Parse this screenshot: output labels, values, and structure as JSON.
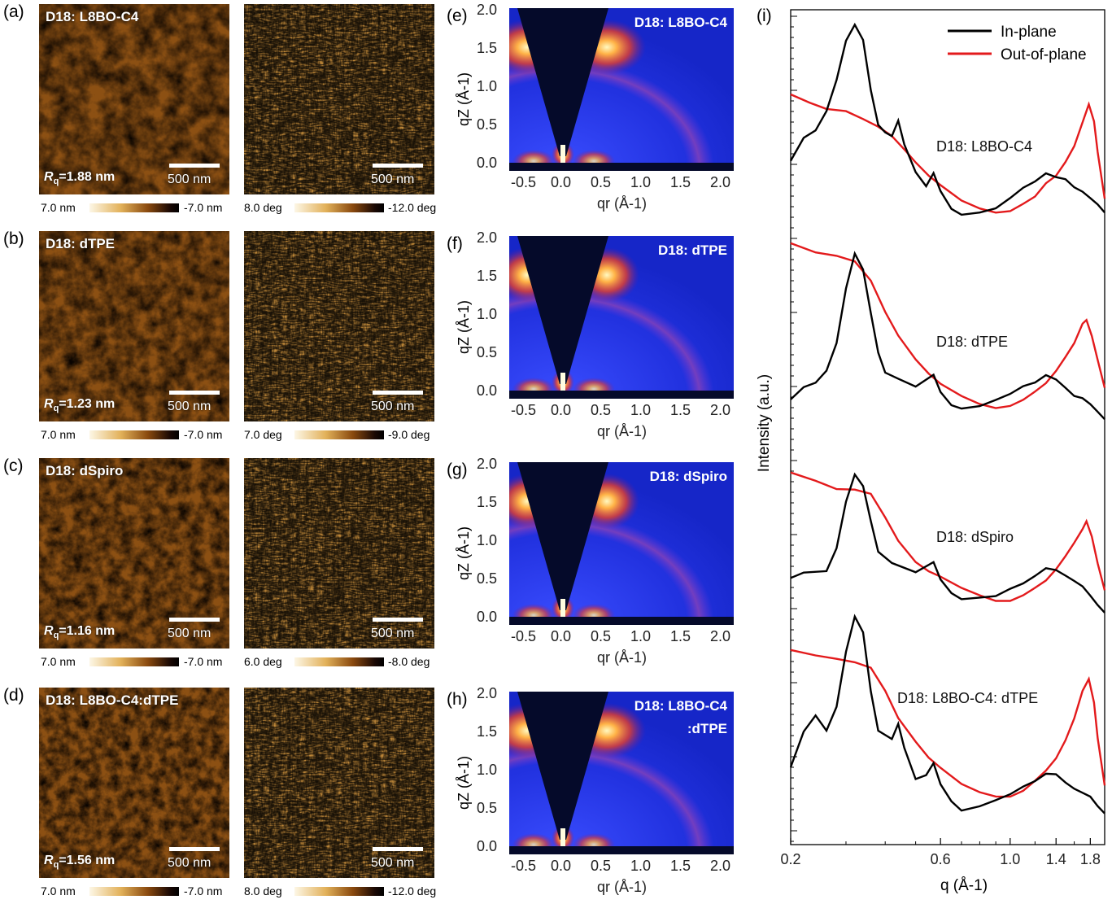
{
  "panels": {
    "a": {
      "letter": "(a)",
      "title": "D18: L8BO-C4",
      "rq_sym": "R",
      "rq_sub": "q",
      "rq_val": "=1.88 nm",
      "scale": "500 nm",
      "scale2": "500 nm",
      "cb1_lo": "7.0 nm",
      "cb1_hi": "-7.0 nm",
      "cb2_lo": "8.0 deg",
      "cb2_hi": "-12.0 deg"
    },
    "b": {
      "letter": "(b)",
      "title": "D18: dTPE",
      "rq_sym": "R",
      "rq_sub": "q",
      "rq_val": "=1.23 nm",
      "scale": "500 nm",
      "scale2": "500 nm",
      "cb1_lo": "7.0 nm",
      "cb1_hi": "-7.0 nm",
      "cb2_lo": "7.0 deg",
      "cb2_hi": "-9.0 deg"
    },
    "c": {
      "letter": "(c)",
      "title": "D18: dSpiro",
      "rq_sym": "R",
      "rq_sub": "q",
      "rq_val": "=1.16 nm",
      "scale": "500 nm",
      "scale2": "500 nm",
      "cb1_lo": "7.0 nm",
      "cb1_hi": "-7.0 nm",
      "cb2_lo": "6.0 deg",
      "cb2_hi": "-8.0 deg"
    },
    "d": {
      "letter": "(d)",
      "title": "D18: L8BO-C4:dTPE",
      "rq_sym": "R",
      "rq_sub": "q",
      "rq_val": "=1.56 nm",
      "scale": "500 nm",
      "scale2": "500 nm",
      "cb1_lo": "7.0 nm",
      "cb1_hi": "-7.0 nm",
      "cb2_lo": "8.0 deg",
      "cb2_hi": "-12.0 deg"
    }
  },
  "giwaxs": {
    "e": {
      "letter": "(e)",
      "title": "D18: L8BO-C4",
      "title2": ""
    },
    "f": {
      "letter": "(f)",
      "title": "D18: dTPE",
      "title2": ""
    },
    "g": {
      "letter": "(g)",
      "title": "D18: dSpiro",
      "title2": ""
    },
    "h": {
      "letter": "(h)",
      "title": "D18: L8BO-C4",
      "title2": ":dTPE"
    },
    "yticks": [
      "2.0",
      "1.5",
      "1.0",
      "0.5",
      "0.0"
    ],
    "xticks": [
      "-0.5",
      "0.0",
      "0.5",
      "1.0",
      "1.5",
      "2.0"
    ],
    "ylabel": "qZ (Å-1)",
    "xlabel": "qr (Å-1)"
  },
  "chart_data": {
    "type": "line",
    "panel_letter": "(i)",
    "xlabel": "q (Å-1)",
    "ylabel": "Intensity (a.u.)",
    "xscale": "log",
    "xlim": [
      0.2,
      2.0
    ],
    "xticks": [
      "0.2",
      "0.6",
      "1.0",
      "1.4",
      "1.8"
    ],
    "legend": [
      {
        "name": "In-plane",
        "color": "#000000"
      },
      {
        "name": "Out-of-plane",
        "color": "#e31a1c"
      }
    ],
    "groups": [
      {
        "label": "D18: L8BO-C4",
        "in_plane": [
          [
            0.2,
            1.3
          ],
          [
            0.22,
            1.9
          ],
          [
            0.24,
            2.1
          ],
          [
            0.26,
            2.6
          ],
          [
            0.28,
            3.4
          ],
          [
            0.3,
            4.4
          ],
          [
            0.32,
            4.8
          ],
          [
            0.34,
            4.4
          ],
          [
            0.36,
            3.1
          ],
          [
            0.38,
            2.2
          ],
          [
            0.4,
            2.0
          ],
          [
            0.42,
            1.9
          ],
          [
            0.44,
            2.3
          ],
          [
            0.46,
            1.7
          ],
          [
            0.5,
            1.0
          ],
          [
            0.54,
            0.65
          ],
          [
            0.57,
            1.0
          ],
          [
            0.6,
            0.55
          ],
          [
            0.65,
            0.1
          ],
          [
            0.7,
            -0.05
          ],
          [
            0.8,
            0.0
          ],
          [
            0.9,
            0.1
          ],
          [
            1.0,
            0.35
          ],
          [
            1.1,
            0.6
          ],
          [
            1.2,
            0.75
          ],
          [
            1.3,
            0.95
          ],
          [
            1.4,
            0.85
          ],
          [
            1.5,
            0.8
          ],
          [
            1.6,
            0.6
          ],
          [
            1.7,
            0.5
          ],
          [
            1.8,
            0.35
          ],
          [
            1.9,
            0.2
          ],
          [
            2.0,
            0.0
          ]
        ],
        "out_of_plane": [
          [
            0.2,
            3.0
          ],
          [
            0.23,
            2.8
          ],
          [
            0.26,
            2.65
          ],
          [
            0.3,
            2.6
          ],
          [
            0.34,
            2.4
          ],
          [
            0.38,
            2.2
          ],
          [
            0.42,
            1.95
          ],
          [
            0.46,
            1.6
          ],
          [
            0.5,
            1.25
          ],
          [
            0.55,
            0.9
          ],
          [
            0.6,
            0.65
          ],
          [
            0.7,
            0.25
          ],
          [
            0.8,
            0.05
          ],
          [
            0.9,
            -0.05
          ],
          [
            1.0,
            0.0
          ],
          [
            1.1,
            0.2
          ],
          [
            1.2,
            0.4
          ],
          [
            1.3,
            0.75
          ],
          [
            1.4,
            0.95
          ],
          [
            1.5,
            1.3
          ],
          [
            1.6,
            1.7
          ],
          [
            1.7,
            2.3
          ],
          [
            1.78,
            2.75
          ],
          [
            1.85,
            2.3
          ],
          [
            1.9,
            1.5
          ],
          [
            2.0,
            0.3
          ]
        ]
      },
      {
        "label": "D18: dTPE",
        "in_plane": [
          [
            0.2,
            0.2
          ],
          [
            0.22,
            0.5
          ],
          [
            0.24,
            0.6
          ],
          [
            0.26,
            0.9
          ],
          [
            0.28,
            1.6
          ],
          [
            0.3,
            3.0
          ],
          [
            0.32,
            3.9
          ],
          [
            0.34,
            3.5
          ],
          [
            0.36,
            2.4
          ],
          [
            0.38,
            1.4
          ],
          [
            0.4,
            0.9
          ],
          [
            0.44,
            0.75
          ],
          [
            0.5,
            0.55
          ],
          [
            0.57,
            0.85
          ],
          [
            0.6,
            0.4
          ],
          [
            0.65,
            0.05
          ],
          [
            0.7,
            -0.05
          ],
          [
            0.8,
            0.0
          ],
          [
            0.9,
            0.15
          ],
          [
            1.0,
            0.3
          ],
          [
            1.1,
            0.5
          ],
          [
            1.2,
            0.6
          ],
          [
            1.3,
            0.8
          ],
          [
            1.4,
            0.7
          ],
          [
            1.5,
            0.5
          ],
          [
            1.6,
            0.3
          ],
          [
            1.7,
            0.25
          ],
          [
            1.8,
            0.1
          ],
          [
            1.9,
            -0.1
          ],
          [
            2.0,
            -0.3
          ]
        ],
        "out_of_plane": [
          [
            0.2,
            4.2
          ],
          [
            0.24,
            3.95
          ],
          [
            0.28,
            3.85
          ],
          [
            0.32,
            3.7
          ],
          [
            0.36,
            3.2
          ],
          [
            0.4,
            2.4
          ],
          [
            0.44,
            1.8
          ],
          [
            0.5,
            1.2
          ],
          [
            0.55,
            0.85
          ],
          [
            0.6,
            0.6
          ],
          [
            0.7,
            0.3
          ],
          [
            0.8,
            0.1
          ],
          [
            0.9,
            0.0
          ],
          [
            1.0,
            0.05
          ],
          [
            1.1,
            0.2
          ],
          [
            1.2,
            0.4
          ],
          [
            1.3,
            0.6
          ],
          [
            1.4,
            0.9
          ],
          [
            1.5,
            1.25
          ],
          [
            1.6,
            1.6
          ],
          [
            1.7,
            2.1
          ],
          [
            1.75,
            2.2
          ],
          [
            1.82,
            1.8
          ],
          [
            1.9,
            1.2
          ],
          [
            2.0,
            0.5
          ]
        ]
      },
      {
        "label": "D18: dSpiro",
        "in_plane": [
          [
            0.2,
            0.6
          ],
          [
            0.22,
            0.75
          ],
          [
            0.26,
            0.8
          ],
          [
            0.28,
            1.4
          ],
          [
            0.3,
            2.6
          ],
          [
            0.32,
            3.3
          ],
          [
            0.34,
            3.0
          ],
          [
            0.36,
            2.1
          ],
          [
            0.38,
            1.3
          ],
          [
            0.42,
            1.0
          ],
          [
            0.5,
            0.75
          ],
          [
            0.57,
            1.0
          ],
          [
            0.6,
            0.55
          ],
          [
            0.65,
            0.2
          ],
          [
            0.7,
            0.05
          ],
          [
            0.8,
            0.1
          ],
          [
            0.9,
            0.15
          ],
          [
            1.0,
            0.35
          ],
          [
            1.1,
            0.5
          ],
          [
            1.2,
            0.7
          ],
          [
            1.3,
            0.9
          ],
          [
            1.4,
            0.85
          ],
          [
            1.5,
            0.7
          ],
          [
            1.6,
            0.55
          ],
          [
            1.7,
            0.4
          ],
          [
            1.8,
            0.15
          ],
          [
            1.9,
            -0.1
          ],
          [
            2.0,
            -0.3
          ]
        ],
        "out_of_plane": [
          [
            0.2,
            3.3
          ],
          [
            0.24,
            3.1
          ],
          [
            0.28,
            2.9
          ],
          [
            0.32,
            2.9
          ],
          [
            0.36,
            2.8
          ],
          [
            0.4,
            2.2
          ],
          [
            0.44,
            1.6
          ],
          [
            0.5,
            1.05
          ],
          [
            0.55,
            0.8
          ],
          [
            0.6,
            0.65
          ],
          [
            0.7,
            0.35
          ],
          [
            0.8,
            0.15
          ],
          [
            0.9,
            0.0
          ],
          [
            1.0,
            0.0
          ],
          [
            1.1,
            0.15
          ],
          [
            1.2,
            0.35
          ],
          [
            1.3,
            0.55
          ],
          [
            1.4,
            0.85
          ],
          [
            1.5,
            1.2
          ],
          [
            1.6,
            1.55
          ],
          [
            1.7,
            1.9
          ],
          [
            1.75,
            2.1
          ],
          [
            1.82,
            1.7
          ],
          [
            1.9,
            1.0
          ],
          [
            2.0,
            0.3
          ]
        ]
      },
      {
        "label": "D18: L8BO-C4: dTPE",
        "in_plane": [
          [
            0.2,
            0.8
          ],
          [
            0.22,
            1.7
          ],
          [
            0.24,
            2.1
          ],
          [
            0.26,
            1.7
          ],
          [
            0.28,
            2.3
          ],
          [
            0.3,
            3.7
          ],
          [
            0.32,
            4.6
          ],
          [
            0.34,
            4.2
          ],
          [
            0.36,
            2.7
          ],
          [
            0.38,
            1.7
          ],
          [
            0.42,
            1.5
          ],
          [
            0.44,
            1.9
          ],
          [
            0.46,
            1.3
          ],
          [
            0.5,
            0.5
          ],
          [
            0.54,
            0.6
          ],
          [
            0.57,
            0.9
          ],
          [
            0.6,
            0.35
          ],
          [
            0.65,
            -0.1
          ],
          [
            0.7,
            -0.35
          ],
          [
            0.8,
            -0.25
          ],
          [
            0.9,
            -0.1
          ],
          [
            1.0,
            0.05
          ],
          [
            1.1,
            0.25
          ],
          [
            1.2,
            0.4
          ],
          [
            1.3,
            0.6
          ],
          [
            1.4,
            0.6
          ],
          [
            1.5,
            0.4
          ],
          [
            1.6,
            0.25
          ],
          [
            1.7,
            0.15
          ],
          [
            1.8,
            0.05
          ],
          [
            1.9,
            -0.2
          ],
          [
            2.0,
            -0.4
          ]
        ],
        "out_of_plane": [
          [
            0.2,
            3.8
          ],
          [
            0.24,
            3.65
          ],
          [
            0.28,
            3.55
          ],
          [
            0.32,
            3.45
          ],
          [
            0.36,
            3.3
          ],
          [
            0.4,
            2.7
          ],
          [
            0.44,
            2.0
          ],
          [
            0.5,
            1.4
          ],
          [
            0.55,
            1.0
          ],
          [
            0.6,
            0.75
          ],
          [
            0.7,
            0.35
          ],
          [
            0.8,
            0.15
          ],
          [
            0.9,
            0.05
          ],
          [
            1.0,
            0.05
          ],
          [
            1.1,
            0.2
          ],
          [
            1.2,
            0.45
          ],
          [
            1.3,
            0.7
          ],
          [
            1.4,
            1.0
          ],
          [
            1.5,
            1.45
          ],
          [
            1.6,
            2.0
          ],
          [
            1.7,
            2.7
          ],
          [
            1.78,
            3.0
          ],
          [
            1.85,
            2.4
          ],
          [
            1.9,
            1.5
          ],
          [
            2.0,
            0.3
          ]
        ]
      }
    ]
  }
}
